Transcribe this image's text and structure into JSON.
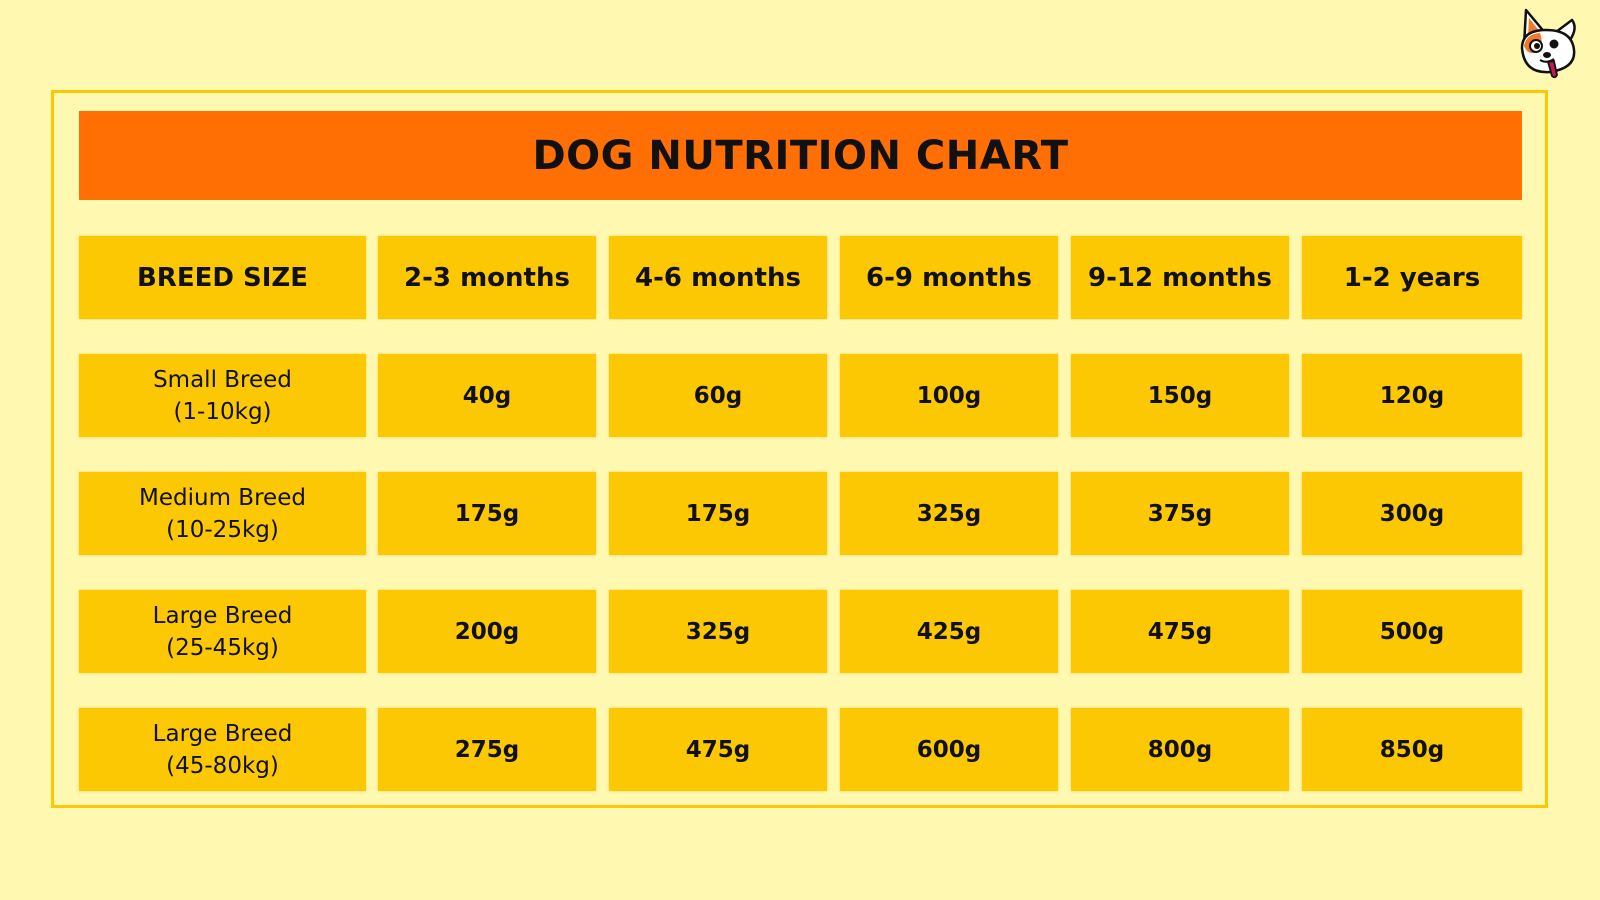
{
  "title": "DOG NUTRITION CHART",
  "brand_icon": "dog-mascot-icon",
  "colors": {
    "background": "#fff8b0",
    "title_bar": "#ff6f04",
    "cell": "#fcc804",
    "frame": "#fcc804",
    "text": "#111111"
  },
  "table": {
    "headers": [
      "BREED SIZE",
      "2-3 months",
      "4-6 months",
      "6-9 months",
      "9-12 months",
      "1-2 years"
    ],
    "rows": [
      {
        "breed": "Small Breed",
        "weight": "(1-10kg)",
        "values": [
          "40g",
          "60g",
          "100g",
          "150g",
          "120g"
        ]
      },
      {
        "breed": "Medium Breed",
        "weight": "(10-25kg)",
        "values": [
          "175g",
          "175g",
          "325g",
          "375g",
          "300g"
        ]
      },
      {
        "breed": "Large Breed",
        "weight": "(25-45kg)",
        "values": [
          "200g",
          "325g",
          "425g",
          "475g",
          "500g"
        ]
      },
      {
        "breed": "Large Breed",
        "weight": "(45-80kg)",
        "values": [
          "275g",
          "475g",
          "600g",
          "800g",
          "850g"
        ]
      }
    ]
  }
}
